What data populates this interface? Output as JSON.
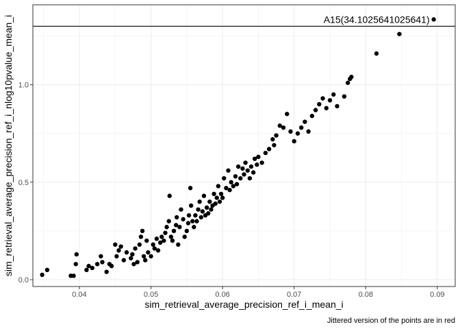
{
  "chart_data": {
    "type": "scatter",
    "xlabel": "sim_retrieval_average_precision_ref_i_mean_i",
    "ylabel": "sim_retrieval_average_precision_ref_i_nlog10pvalue_mean_i",
    "caption": "Jittered version of the points are in red",
    "xlim": [
      0.0335,
      0.0925
    ],
    "ylim": [
      -0.035,
      1.41
    ],
    "x_ticks": [
      0.04,
      0.05,
      0.06,
      0.07,
      0.08,
      0.09
    ],
    "x_tick_labels": [
      "0.04",
      "0.05",
      "0.06",
      "0.07",
      "0.08",
      "0.09"
    ],
    "y_ticks": [
      0.0,
      0.5,
      1.0
    ],
    "y_tick_labels": [
      "0.0",
      "0.5",
      "1.0"
    ],
    "hline": 1.3,
    "grid": true,
    "annotation": {
      "x": 0.0895,
      "y": 1.335,
      "label": "A15(34.1025641025641)"
    },
    "colors": {
      "points": "#000000",
      "grid": "#ebebeb",
      "panel_border": "#333333",
      "hline": "#000000"
    },
    "points": [
      [
        0.0348,
        0.025
      ],
      [
        0.0355,
        0.05
      ],
      [
        0.0388,
        0.02
      ],
      [
        0.0392,
        0.02
      ],
      [
        0.0395,
        0.08
      ],
      [
        0.0396,
        0.13
      ],
      [
        0.041,
        0.05
      ],
      [
        0.0413,
        0.07
      ],
      [
        0.0418,
        0.06
      ],
      [
        0.0425,
        0.08
      ],
      [
        0.043,
        0.12
      ],
      [
        0.0432,
        0.09
      ],
      [
        0.0438,
        0.04
      ],
      [
        0.0442,
        0.08
      ],
      [
        0.0445,
        0.07
      ],
      [
        0.045,
        0.18
      ],
      [
        0.0452,
        0.12
      ],
      [
        0.0455,
        0.15
      ],
      [
        0.0458,
        0.17
      ],
      [
        0.0462,
        0.1
      ],
      [
        0.0466,
        0.14
      ],
      [
        0.0472,
        0.11
      ],
      [
        0.0474,
        0.13
      ],
      [
        0.0476,
        0.08
      ],
      [
        0.0478,
        0.16
      ],
      [
        0.0481,
        0.09
      ],
      [
        0.0484,
        0.18
      ],
      [
        0.0486,
        0.22
      ],
      [
        0.0488,
        0.25
      ],
      [
        0.049,
        0.12
      ],
      [
        0.0492,
        0.1
      ],
      [
        0.0494,
        0.2
      ],
      [
        0.0496,
        0.14
      ],
      [
        0.05,
        0.12
      ],
      [
        0.0503,
        0.18
      ],
      [
        0.0505,
        0.16
      ],
      [
        0.0508,
        0.21
      ],
      [
        0.051,
        0.15
      ],
      [
        0.0513,
        0.19
      ],
      [
        0.0515,
        0.22
      ],
      [
        0.0518,
        0.2
      ],
      [
        0.052,
        0.24
      ],
      [
        0.0522,
        0.27
      ],
      [
        0.0525,
        0.3
      ],
      [
        0.0526,
        0.43
      ],
      [
        0.0528,
        0.22
      ],
      [
        0.053,
        0.2
      ],
      [
        0.0532,
        0.25
      ],
      [
        0.0535,
        0.28
      ],
      [
        0.0536,
        0.32
      ],
      [
        0.0538,
        0.18
      ],
      [
        0.054,
        0.27
      ],
      [
        0.0542,
        0.36
      ],
      [
        0.0545,
        0.31
      ],
      [
        0.0547,
        0.22
      ],
      [
        0.055,
        0.25
      ],
      [
        0.0552,
        0.29
      ],
      [
        0.0553,
        0.33
      ],
      [
        0.0555,
        0.47
      ],
      [
        0.0556,
        0.38
      ],
      [
        0.0558,
        0.3
      ],
      [
        0.056,
        0.27
      ],
      [
        0.0562,
        0.33
      ],
      [
        0.0564,
        0.3
      ],
      [
        0.0566,
        0.36
      ],
      [
        0.0568,
        0.4
      ],
      [
        0.057,
        0.32
      ],
      [
        0.0572,
        0.35
      ],
      [
        0.0574,
        0.43
      ],
      [
        0.0576,
        0.33
      ],
      [
        0.0578,
        0.37
      ],
      [
        0.058,
        0.34
      ],
      [
        0.0582,
        0.4
      ],
      [
        0.0584,
        0.36
      ],
      [
        0.0586,
        0.38
      ],
      [
        0.0588,
        0.44
      ],
      [
        0.059,
        0.39
      ],
      [
        0.0592,
        0.42
      ],
      [
        0.0594,
        0.48
      ],
      [
        0.0596,
        0.4
      ],
      [
        0.0598,
        0.44
      ],
      [
        0.06,
        0.42
      ],
      [
        0.0602,
        0.52
      ],
      [
        0.0605,
        0.47
      ],
      [
        0.0608,
        0.56
      ],
      [
        0.061,
        0.46
      ],
      [
        0.0612,
        0.5
      ],
      [
        0.0615,
        0.48
      ],
      [
        0.0618,
        0.53
      ],
      [
        0.062,
        0.49
      ],
      [
        0.0622,
        0.58
      ],
      [
        0.0625,
        0.52
      ],
      [
        0.0628,
        0.57
      ],
      [
        0.063,
        0.54
      ],
      [
        0.0632,
        0.6
      ],
      [
        0.0635,
        0.56
      ],
      [
        0.0638,
        0.52
      ],
      [
        0.064,
        0.58
      ],
      [
        0.0643,
        0.55
      ],
      [
        0.0645,
        0.62
      ],
      [
        0.0648,
        0.59
      ],
      [
        0.065,
        0.63
      ],
      [
        0.0655,
        0.6
      ],
      [
        0.066,
        0.65
      ],
      [
        0.0665,
        0.67
      ],
      [
        0.067,
        0.72
      ],
      [
        0.0672,
        0.69
      ],
      [
        0.0675,
        0.74
      ],
      [
        0.068,
        0.79
      ],
      [
        0.0685,
        0.78
      ],
      [
        0.069,
        0.85
      ],
      [
        0.0695,
        0.76
      ],
      [
        0.07,
        0.71
      ],
      [
        0.0705,
        0.75
      ],
      [
        0.071,
        0.78
      ],
      [
        0.0715,
        0.81
      ],
      [
        0.072,
        0.76
      ],
      [
        0.0725,
        0.84
      ],
      [
        0.073,
        0.87
      ],
      [
        0.0735,
        0.9
      ],
      [
        0.074,
        0.93
      ],
      [
        0.0745,
        0.88
      ],
      [
        0.075,
        0.92
      ],
      [
        0.0755,
        0.95
      ],
      [
        0.076,
        0.89
      ],
      [
        0.077,
        0.94
      ],
      [
        0.0775,
        1.01
      ],
      [
        0.0778,
        1.03
      ],
      [
        0.078,
        1.04
      ],
      [
        0.0815,
        1.16
      ],
      [
        0.0847,
        1.26
      ],
      [
        0.0895,
        1.335
      ]
    ]
  }
}
